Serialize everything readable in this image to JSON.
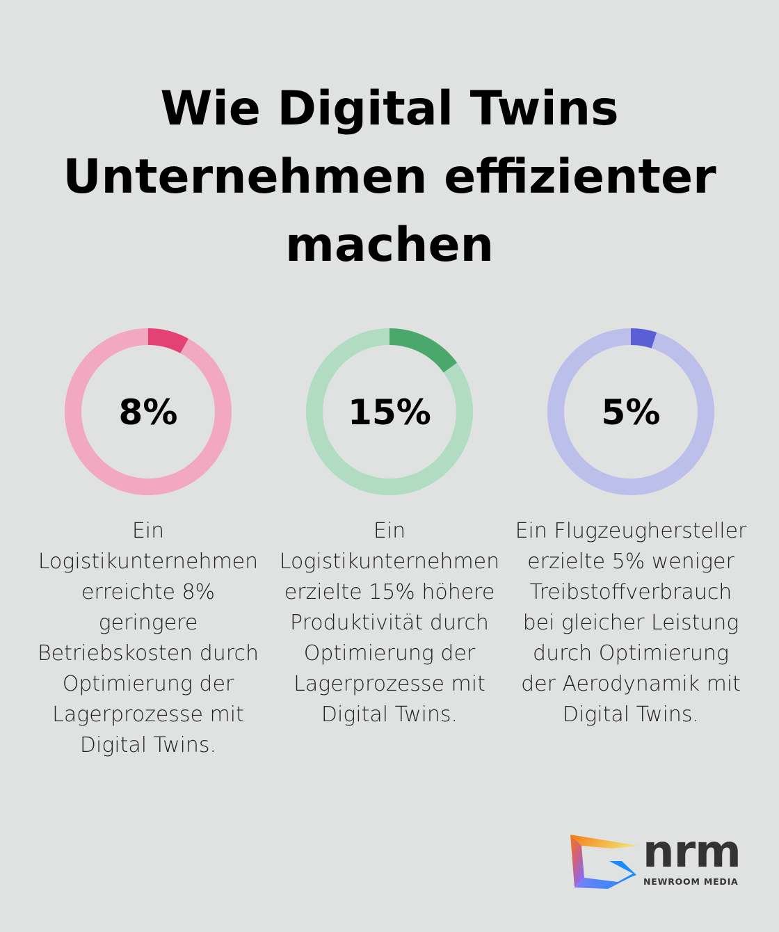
{
  "title": "Wie Digital Twins Unternehmen effizienter machen",
  "chart_data": [
    {
      "type": "pie",
      "style": "donut",
      "value": 8,
      "max": 100,
      "label": "8%",
      "color_fill": "#e44275",
      "color_track": "#f2a8c0",
      "description": "Ein Logistikunternehmen erreichte 8% geringere Betriebskosten durch Optimierung der Lagerprozesse mit Digital Twins."
    },
    {
      "type": "pie",
      "style": "donut",
      "value": 15,
      "max": 100,
      "label": "15%",
      "color_fill": "#4aa86c",
      "color_track": "#b2dcc2",
      "description": "Ein Logistikunternehmen erzielte 15% höhere Produktivität durch Optimierung der Lagerprozesse mit Digital Twins."
    },
    {
      "type": "pie",
      "style": "donut",
      "value": 5,
      "max": 100,
      "label": "5%",
      "color_fill": "#5b5fd6",
      "color_track": "#bcbfea",
      "description": "Ein Flugzeughersteller erzielte 5% weniger Treibstoffverbrauch bei gleicher Leistung durch Optimierung der Aerodynamik mit Digital Twins."
    }
  ],
  "logo": {
    "mark": "nrm",
    "name": "NEWROOM MEDIA"
  }
}
